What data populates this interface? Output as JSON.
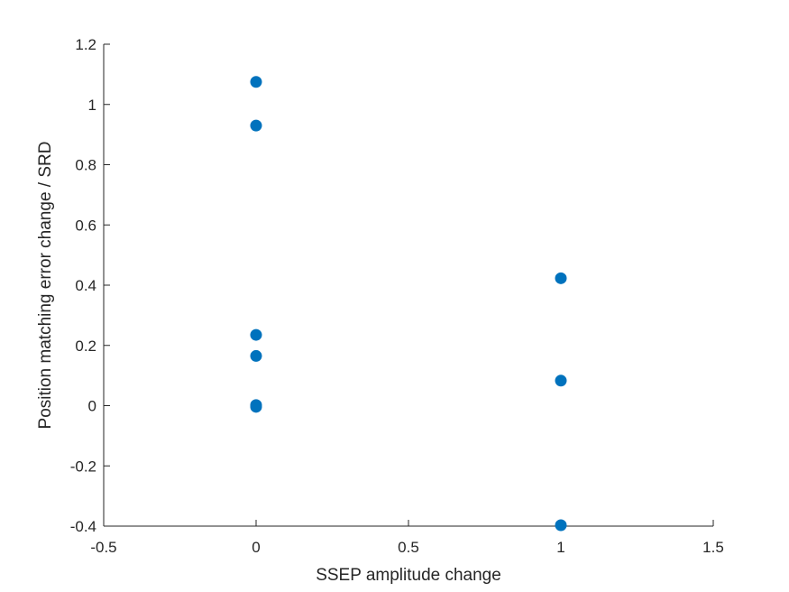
{
  "chart_data": {
    "type": "scatter",
    "title": "",
    "xlabel": "SSEP amplitude change",
    "ylabel": "Position matching error change / SRD",
    "xlim": [
      -0.5,
      1.5
    ],
    "ylim": [
      -0.4,
      1.2
    ],
    "xticks": [
      -0.5,
      0,
      0.5,
      1,
      1.5
    ],
    "xtick_labels": [
      "-0.5",
      "0",
      "0.5",
      "1",
      "1.5"
    ],
    "yticks": [
      -0.4,
      -0.2,
      0,
      0.2,
      0.4,
      0.6,
      0.8,
      1,
      1.2
    ],
    "ytick_labels": [
      "-0.4",
      "-0.2",
      "0",
      "0.2",
      "0.4",
      "0.6",
      "0.8",
      "1",
      "1.2"
    ],
    "grid": false,
    "marker_color": "#0072BD",
    "series": [
      {
        "x": [
          0,
          0,
          0,
          0,
          0,
          0,
          1,
          1,
          1
        ],
        "y": [
          1.075,
          0.93,
          0.235,
          0.165,
          0.002,
          -0.004,
          0.423,
          0.083,
          -0.397
        ]
      }
    ]
  }
}
